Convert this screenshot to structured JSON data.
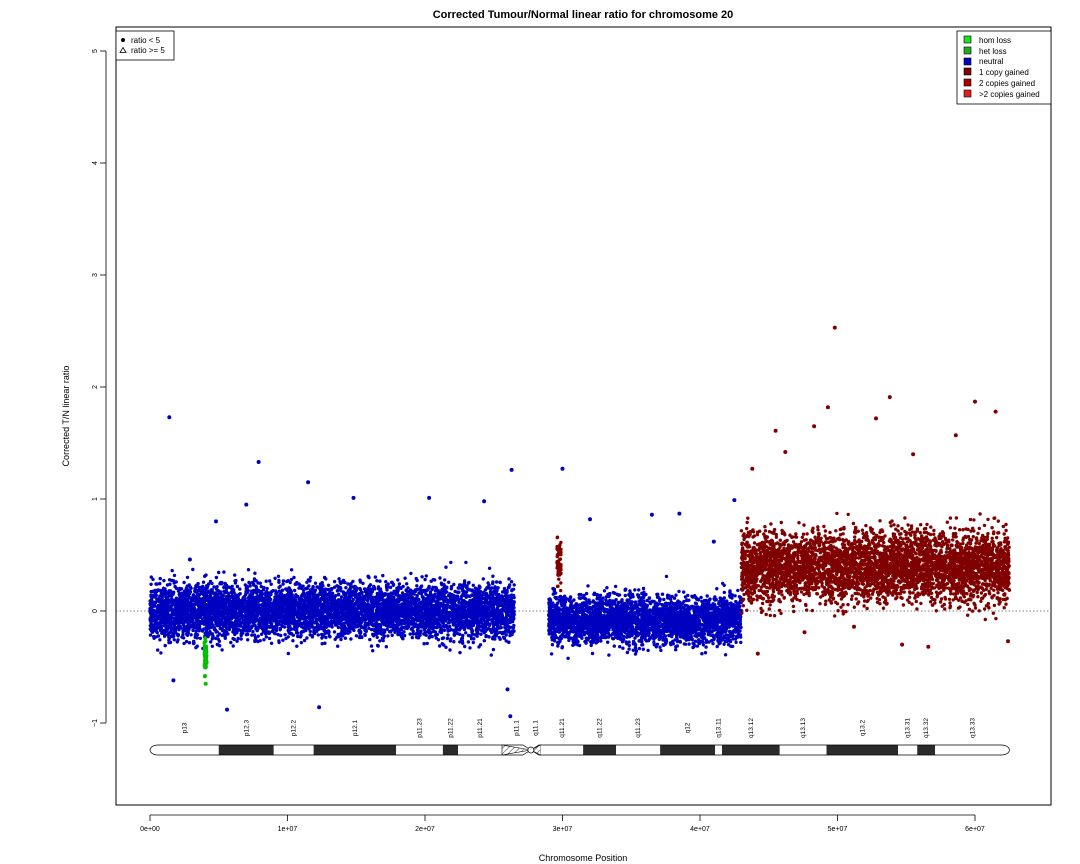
{
  "chart_data": {
    "type": "scatter",
    "title": "Corrected Tumour/Normal linear ratio for chromosome  20",
    "xlabel": "Chromosome Position",
    "ylabel": "Corrected T/N linear ratio",
    "xlim": [
      -2500000,
      65000000
    ],
    "ylim": [
      -1.75,
      5.35
    ],
    "x_ticks": [
      {
        "v": 0,
        "label": "0e+00"
      },
      {
        "v": 10000000,
        "label": "1e+07"
      },
      {
        "v": 20000000,
        "label": "2e+07"
      },
      {
        "v": 30000000,
        "label": "3e+07"
      },
      {
        "v": 40000000,
        "label": "4e+07"
      },
      {
        "v": 50000000,
        "label": "5e+07"
      },
      {
        "v": 60000000,
        "label": "6e+07"
      }
    ],
    "y_ticks": [
      {
        "v": -1,
        "label": "−1"
      },
      {
        "v": 0,
        "label": "0"
      },
      {
        "v": 1,
        "label": "1"
      },
      {
        "v": 2,
        "label": "2"
      },
      {
        "v": 3,
        "label": "3"
      },
      {
        "v": 4,
        "label": "4"
      },
      {
        "v": 5,
        "label": "5"
      }
    ],
    "reference_line": 0,
    "series": [
      {
        "name": "neutral",
        "color": "#0000c0",
        "segments": [
          [
            0,
            26500000,
            0.0,
            0.17
          ],
          [
            29000000,
            43000000,
            -0.08,
            0.15
          ]
        ]
      },
      {
        "name": "het loss",
        "color": "#00c000",
        "segments": [
          [
            3950000,
            4150000,
            -0.4,
            0.1
          ]
        ]
      },
      {
        "name": "1 copy gained",
        "color": "#800000",
        "segments": [
          [
            43000000,
            62500000,
            0.4,
            0.22
          ],
          [
            29600000,
            29900000,
            0.45,
            0.15
          ]
        ]
      }
    ],
    "outliers": [
      {
        "series": "neutral",
        "points": [
          [
            1400000,
            1.73
          ],
          [
            7900000,
            1.33
          ],
          [
            11500000,
            1.15
          ],
          [
            14800000,
            1.01
          ],
          [
            20300000,
            1.01
          ],
          [
            24300000,
            0.98
          ],
          [
            26300000,
            1.26
          ],
          [
            26200000,
            -0.94
          ],
          [
            26000000,
            -0.7
          ],
          [
            5600000,
            -0.88
          ],
          [
            12300000,
            -0.86
          ],
          [
            1700000,
            -0.62
          ],
          [
            7000000,
            0.95
          ],
          [
            2900000,
            0.46
          ],
          [
            4800000,
            0.8
          ],
          [
            30000000,
            1.27
          ],
          [
            32000000,
            0.82
          ],
          [
            36500000,
            0.86
          ],
          [
            38500000,
            0.87
          ],
          [
            41000000,
            0.62
          ],
          [
            42500000,
            0.99
          ]
        ]
      },
      {
        "series": "het loss",
        "points": [
          [
            4050000,
            -0.65
          ],
          [
            4000000,
            -0.58
          ]
        ]
      },
      {
        "series": "1 copy gained",
        "points": [
          [
            49800000,
            2.53
          ],
          [
            53800000,
            1.91
          ],
          [
            49300000,
            1.82
          ],
          [
            48300000,
            1.65
          ],
          [
            52800000,
            1.72
          ],
          [
            60000000,
            1.87
          ],
          [
            45500000,
            1.61
          ],
          [
            43800000,
            1.27
          ],
          [
            46200000,
            1.42
          ],
          [
            55500000,
            1.4
          ],
          [
            58600000,
            1.57
          ],
          [
            61500000,
            1.78
          ],
          [
            54700000,
            -0.3
          ],
          [
            56600000,
            -0.32
          ],
          [
            44200000,
            -0.38
          ],
          [
            62400000,
            -0.27
          ],
          [
            47600000,
            -0.19
          ],
          [
            51200000,
            -0.14
          ]
        ]
      }
    ],
    "legend_shape": [
      {
        "label": "ratio < 5",
        "symbol": "dot"
      },
      {
        "label": "ratio >= 5",
        "symbol": "triangle"
      }
    ],
    "legend_state": [
      {
        "label": "hom loss",
        "color": "#22dd22"
      },
      {
        "label": "het loss",
        "color": "#22aa22"
      },
      {
        "label": "neutral",
        "color": "#0000c0"
      },
      {
        "label": "1 copy gained",
        "color": "#800000"
      },
      {
        "label": "2 copies gained",
        "color": "#aa0000"
      },
      {
        "label": ">2 copies gained",
        "color": "#e02020"
      }
    ],
    "ideogram": {
      "centromere": 27700000,
      "end": 62500000,
      "bands": [
        {
          "name": "p13",
          "start": 0,
          "end": 5000000,
          "stain": "gneg"
        },
        {
          "name": "p12.3",
          "start": 5000000,
          "end": 9000000,
          "stain": "gpos"
        },
        {
          "name": "p12.2",
          "start": 9000000,
          "end": 11900000,
          "stain": "gneg"
        },
        {
          "name": "p12.1",
          "start": 11900000,
          "end": 17900000,
          "stain": "gpos"
        },
        {
          "name": "p11.23",
          "start": 17900000,
          "end": 21300000,
          "stain": "gneg"
        },
        {
          "name": "p11.22",
          "start": 21300000,
          "end": 22400000,
          "stain": "gpos"
        },
        {
          "name": "p11.21",
          "start": 22400000,
          "end": 25600000,
          "stain": "gneg"
        },
        {
          "name": "p11.1",
          "start": 25600000,
          "end": 27700000,
          "stain": "acen"
        },
        {
          "name": "q11.1",
          "start": 27700000,
          "end": 28400000,
          "stain": "acen"
        },
        {
          "name": "q11.21",
          "start": 28400000,
          "end": 31500000,
          "stain": "gneg"
        },
        {
          "name": "q11.22",
          "start": 31500000,
          "end": 33900000,
          "stain": "gpos"
        },
        {
          "name": "q11.23",
          "start": 33900000,
          "end": 37100000,
          "stain": "gneg"
        },
        {
          "name": "q12",
          "start": 37100000,
          "end": 41100000,
          "stain": "gpos"
        },
        {
          "name": "q13.11",
          "start": 41100000,
          "end": 41600000,
          "stain": "gneg"
        },
        {
          "name": "q13.12",
          "start": 41600000,
          "end": 45800000,
          "stain": "gpos"
        },
        {
          "name": "q13.13",
          "start": 45800000,
          "end": 49200000,
          "stain": "gneg"
        },
        {
          "name": "q13.2",
          "start": 49200000,
          "end": 54400000,
          "stain": "gpos"
        },
        {
          "name": "q13.31",
          "start": 54400000,
          "end": 55800000,
          "stain": "gneg"
        },
        {
          "name": "q13.32",
          "start": 55800000,
          "end": 57100000,
          "stain": "gpos"
        },
        {
          "name": "q13.33",
          "start": 57100000,
          "end": 62500000,
          "stain": "gneg"
        }
      ]
    }
  }
}
